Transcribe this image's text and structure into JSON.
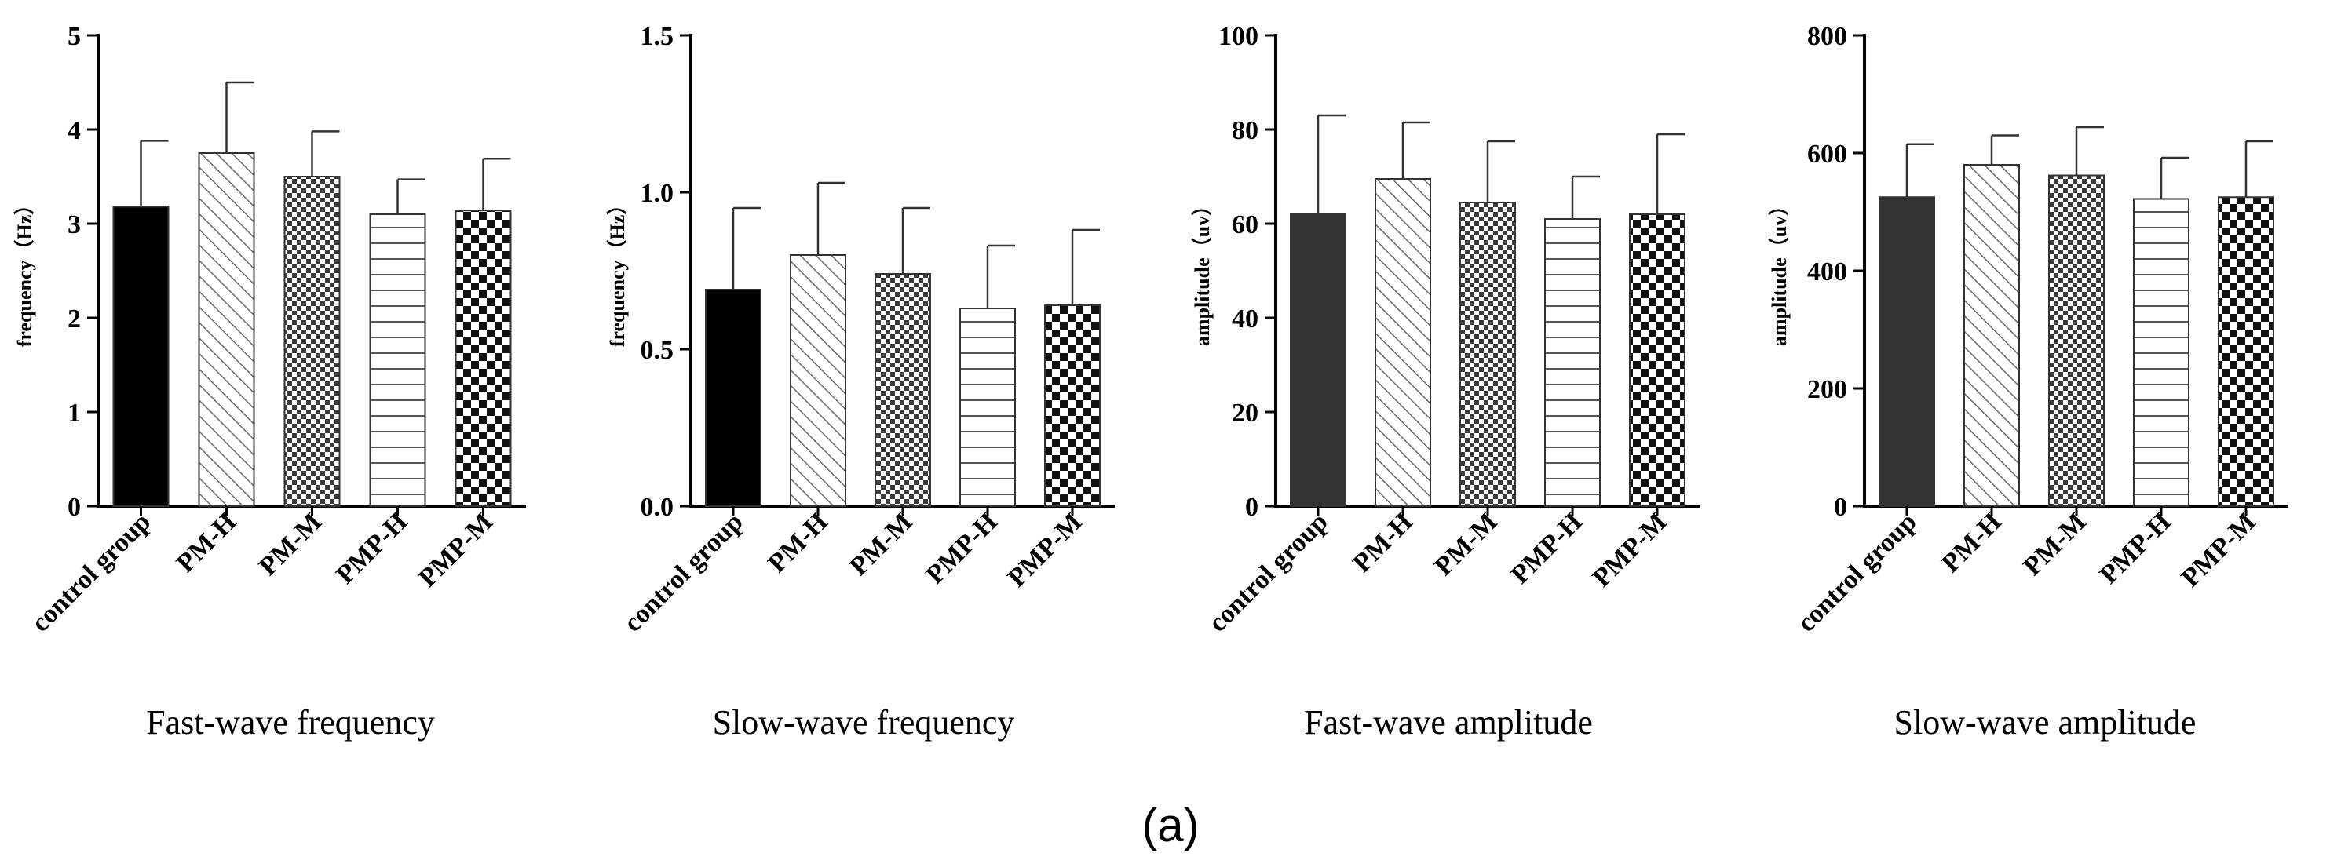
{
  "figure_label": "(a)",
  "chart_data": [
    {
      "type": "bar",
      "title": "Fast-wave frequency",
      "xlabel": "",
      "ylabel": "frequency（Hz）",
      "categories": [
        "control group",
        "PM-H",
        "PM-M",
        "PMP-H",
        "PMP-M"
      ],
      "values": [
        3.18,
        3.75,
        3.5,
        3.1,
        3.14
      ],
      "errors": [
        0.7,
        0.75,
        0.48,
        0.37,
        0.55
      ],
      "ylim": [
        0,
        5
      ],
      "yticks": [
        "0",
        "1",
        "2",
        "3",
        "4",
        "5"
      ],
      "grid": false
    },
    {
      "type": "bar",
      "title": "Slow-wave frequency",
      "xlabel": "",
      "ylabel": "frequency（Hz）",
      "categories": [
        "control group",
        "PM-H",
        "PM-M",
        "PMP-H",
        "PMP-M"
      ],
      "values": [
        0.69,
        0.8,
        0.74,
        0.63,
        0.64
      ],
      "errors": [
        0.26,
        0.23,
        0.21,
        0.2,
        0.24
      ],
      "ylim": [
        0,
        1.5
      ],
      "yticks": [
        "0.0",
        "0.5",
        "1.0",
        "1.5"
      ],
      "grid": false
    },
    {
      "type": "bar",
      "title": "Fast-wave amplitude",
      "xlabel": "",
      "ylabel": "amplitude（uv）",
      "categories": [
        "control group",
        "PM-H",
        "PM-M",
        "PMP-H",
        "PMP-M"
      ],
      "values": [
        62,
        69.5,
        64.5,
        61,
        62
      ],
      "errors": [
        21,
        12,
        13,
        9,
        17
      ],
      "ylim": [
        0,
        100
      ],
      "yticks": [
        "0",
        "20",
        "40",
        "60",
        "80",
        "100"
      ],
      "grid": false
    },
    {
      "type": "bar",
      "title": "Slow-wave amplitude",
      "xlabel": "",
      "ylabel": "amplitude（uv）",
      "categories": [
        "control group",
        "PM-H",
        "PM-M",
        "PMP-H",
        "PMP-M"
      ],
      "values": [
        525,
        580,
        562,
        522,
        525
      ],
      "errors": [
        90,
        50,
        82,
        70,
        95
      ],
      "ylim": [
        0,
        800
      ],
      "yticks": [
        "0",
        "200",
        "400",
        "600",
        "800"
      ],
      "grid": false
    }
  ],
  "colors": {
    "axis": "#000000",
    "bar_solid_freq": "#000000",
    "bar_solid_amp": "#333333",
    "pattern_stroke": "#555555"
  }
}
